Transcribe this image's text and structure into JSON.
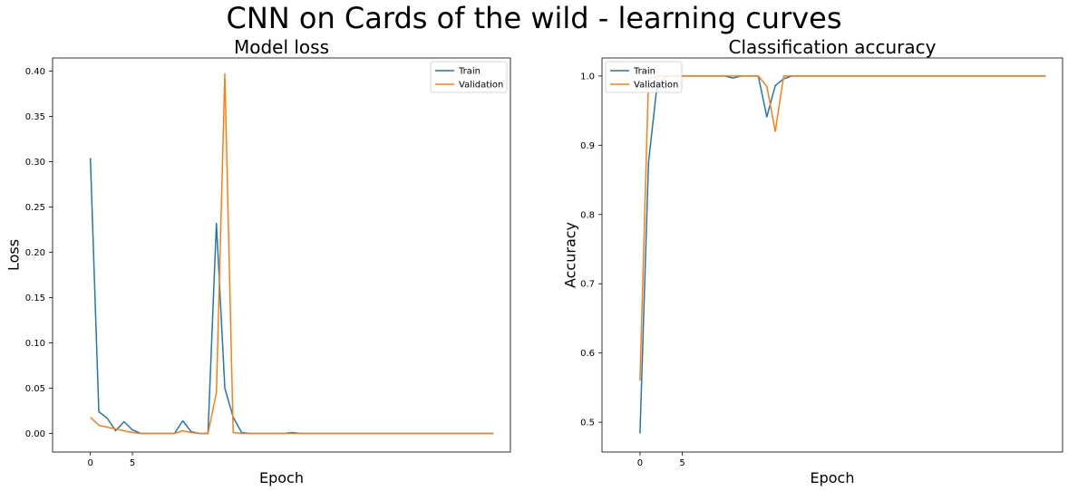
{
  "figure_title": "CNN on Cards of the wild - learning curves",
  "chart_data": [
    {
      "type": "line",
      "title": "Model loss",
      "xlabel": "Epoch",
      "ylabel": "Loss",
      "xlim": [
        -4.5,
        50
      ],
      "ylim": [
        -0.0205,
        0.4145
      ],
      "x_ticks": [
        0,
        5
      ],
      "y_ticks": [
        0.0,
        0.05,
        0.1,
        0.15,
        0.2,
        0.25,
        0.3,
        0.35,
        0.4
      ],
      "y_tick_labels": [
        "0.00",
        "0.05",
        "0.10",
        "0.15",
        "0.20",
        "0.25",
        "0.30",
        "0.35",
        "0.40"
      ],
      "legend_position": "upper right",
      "legend": [
        "Train",
        "Validation"
      ],
      "series": [
        {
          "name": "Train",
          "color": "#1f77b4",
          "x": [
            0,
            1,
            2,
            3,
            4,
            5,
            6,
            7,
            8,
            9,
            10,
            11,
            12,
            13,
            14,
            15,
            16,
            17,
            18,
            19,
            20,
            21,
            22,
            23,
            24,
            25,
            26,
            27,
            28,
            29,
            30,
            31,
            32,
            33,
            34,
            35,
            36,
            37,
            38,
            39,
            40,
            41,
            42,
            43,
            44,
            45,
            46,
            47,
            48
          ],
          "values": [
            0.304,
            0.024,
            0.017,
            0.003,
            0.013,
            0.004,
            0.0,
            0.0,
            0.0,
            0.0,
            0.0,
            0.014,
            0.002,
            0.0,
            0.0,
            0.232,
            0.05,
            0.018,
            0.001,
            0.0,
            0.0,
            0.0,
            0.0,
            0.0,
            0.001,
            0.0,
            0.0,
            0.0,
            0.0,
            0.0,
            0.0,
            0.0,
            0.0,
            0.0,
            0.0,
            0.0,
            0.0,
            0.0,
            0.0,
            0.0,
            0.0,
            0.0,
            0.0,
            0.0,
            0.0,
            0.0,
            0.0,
            0.0,
            0.0
          ]
        },
        {
          "name": "Validation",
          "color": "#ff7f0e",
          "x": [
            0,
            1,
            2,
            3,
            4,
            5,
            6,
            7,
            8,
            9,
            10,
            11,
            12,
            13,
            14,
            15,
            16,
            17,
            18,
            19,
            20,
            21,
            22,
            23,
            24,
            25,
            26,
            27,
            28,
            29,
            30,
            31,
            32,
            33,
            34,
            35,
            36,
            37,
            38,
            39,
            40,
            41,
            42,
            43,
            44,
            45,
            46,
            47,
            48
          ],
          "values": [
            0.018,
            0.009,
            0.007,
            0.005,
            0.003,
            0.001,
            0.0,
            0.0,
            0.0,
            0.0,
            0.0,
            0.003,
            0.001,
            0.0,
            0.0,
            0.045,
            0.397,
            0.001,
            0.0,
            0.0,
            0.0,
            0.0,
            0.0,
            0.0,
            0.0,
            0.0,
            0.0,
            0.0,
            0.0,
            0.0,
            0.0,
            0.0,
            0.0,
            0.0,
            0.0,
            0.0,
            0.0,
            0.0,
            0.0,
            0.0,
            0.0,
            0.0,
            0.0,
            0.0,
            0.0,
            0.0,
            0.0,
            0.0,
            0.0
          ]
        }
      ]
    },
    {
      "type": "line",
      "title": "Classification accuracy",
      "xlabel": "Epoch",
      "ylabel": "Accuracy",
      "xlim": [
        -4.5,
        50
      ],
      "ylim": [
        0.457,
        1.026
      ],
      "x_ticks": [
        0,
        5
      ],
      "y_ticks": [
        0.5,
        0.6,
        0.7,
        0.8,
        0.9,
        1.0
      ],
      "y_tick_labels": [
        "0.5",
        "0.6",
        "0.7",
        "0.8",
        "0.9",
        "1.0"
      ],
      "legend_position": "upper left",
      "legend": [
        "Train",
        "Validation"
      ],
      "series": [
        {
          "name": "Train",
          "color": "#1f77b4",
          "x": [
            0,
            1,
            2,
            3,
            4,
            5,
            6,
            7,
            8,
            9,
            10,
            11,
            12,
            13,
            14,
            15,
            16,
            17,
            18,
            19,
            20,
            21,
            22,
            23,
            24,
            25,
            26,
            27,
            28,
            29,
            30,
            31,
            32,
            33,
            34,
            35,
            36,
            37,
            38,
            39,
            40,
            41,
            42,
            43,
            44,
            45,
            46,
            47,
            48
          ],
          "values": [
            0.484,
            0.875,
            0.985,
            0.999,
            1.0,
            1.0,
            1.0,
            1.0,
            1.0,
            1.0,
            1.0,
            0.997,
            1.0,
            1.0,
            1.0,
            0.941,
            0.986,
            0.996,
            1.0,
            1.0,
            1.0,
            1.0,
            1.0,
            1.0,
            1.0,
            1.0,
            1.0,
            1.0,
            1.0,
            1.0,
            1.0,
            1.0,
            1.0,
            1.0,
            1.0,
            1.0,
            1.0,
            1.0,
            1.0,
            1.0,
            1.0,
            1.0,
            1.0,
            1.0,
            1.0,
            1.0,
            1.0,
            1.0,
            1.0
          ]
        },
        {
          "name": "Validation",
          "color": "#ff7f0e",
          "x": [
            0,
            1,
            2,
            3,
            4,
            5,
            6,
            7,
            8,
            9,
            10,
            11,
            12,
            13,
            14,
            15,
            16,
            17,
            18,
            19,
            20,
            21,
            22,
            23,
            24,
            25,
            26,
            27,
            28,
            29,
            30,
            31,
            32,
            33,
            34,
            35,
            36,
            37,
            38,
            39,
            40,
            41,
            42,
            43,
            44,
            45,
            46,
            47,
            48
          ],
          "values": [
            0.56,
            0.995,
            1.0,
            1.0,
            1.0,
            1.0,
            1.0,
            1.0,
            1.0,
            1.0,
            1.0,
            1.0,
            1.0,
            1.0,
            1.0,
            0.985,
            0.92,
            1.0,
            1.0,
            1.0,
            1.0,
            1.0,
            1.0,
            1.0,
            1.0,
            1.0,
            1.0,
            1.0,
            1.0,
            1.0,
            1.0,
            1.0,
            1.0,
            1.0,
            1.0,
            1.0,
            1.0,
            1.0,
            1.0,
            1.0,
            1.0,
            1.0,
            1.0,
            1.0,
            1.0,
            1.0,
            1.0,
            1.0,
            1.0
          ]
        }
      ]
    }
  ]
}
